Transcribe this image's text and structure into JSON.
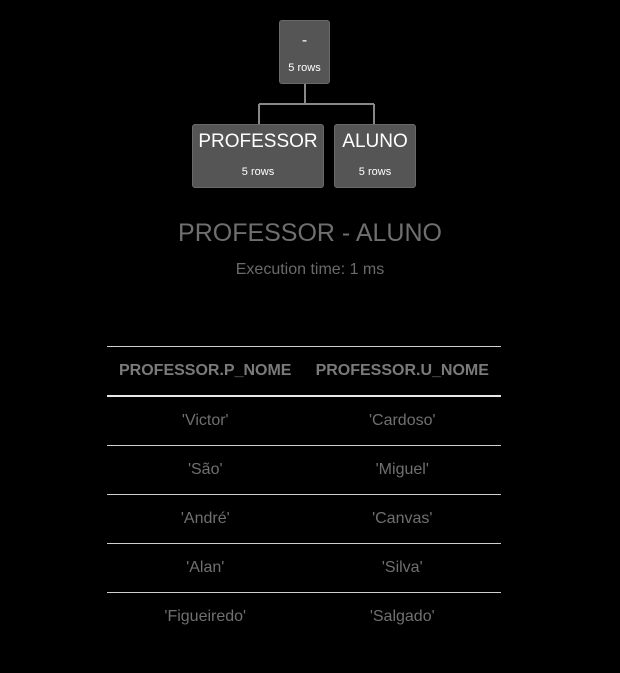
{
  "tree": {
    "root": {
      "name": "-",
      "rows": "5 rows"
    },
    "left": {
      "name": "PROFESSOR",
      "rows": "5 rows"
    },
    "right": {
      "name": "ALUNO",
      "rows": "5 rows"
    }
  },
  "query": {
    "title": "PROFESSOR - ALUNO",
    "execution_time": "Execution time: 1 ms"
  },
  "table": {
    "headers": [
      "PROFESSOR.P_NOME",
      "PROFESSOR.U_NOME"
    ],
    "rows": [
      [
        "'Victor'",
        "'Cardoso'"
      ],
      [
        "'São'",
        "'Miguel'"
      ],
      [
        "'André'",
        "'Canvas'"
      ],
      [
        "'Alan'",
        "'Silva'"
      ],
      [
        "'Figueiredo'",
        "'Salgado'"
      ]
    ]
  }
}
